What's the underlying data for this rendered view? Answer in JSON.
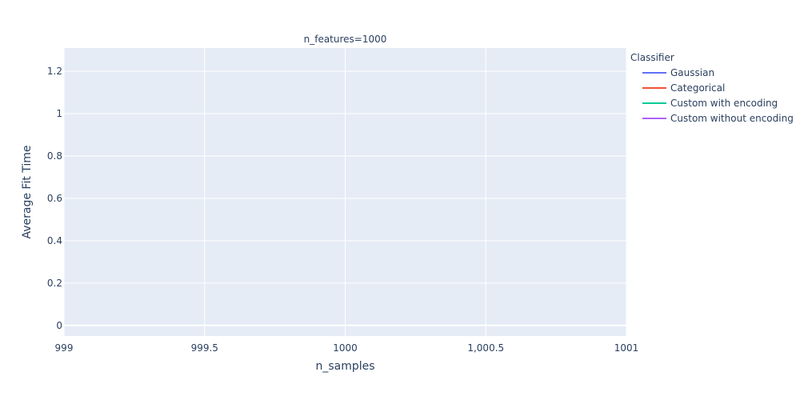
{
  "chart_data": {
    "type": "line",
    "title": "",
    "subplot_title": "n_features=1000",
    "xlabel": "n_samples",
    "ylabel": "Average Fit Time",
    "xlim": [
      999,
      1001
    ],
    "ylim": [
      -0.05,
      1.31
    ],
    "x_ticks": [
      999,
      999.5,
      1000,
      1000.5,
      1001
    ],
    "x_tick_labels": [
      "999",
      "999.5",
      "1000",
      "1,000.5",
      "1001"
    ],
    "y_ticks": [
      0,
      0.2,
      0.4,
      0.6,
      0.8,
      1,
      1.2
    ],
    "y_tick_labels": [
      "0",
      "0.2",
      "0.4",
      "0.6",
      "0.8",
      "1",
      "1.2"
    ],
    "grid": true,
    "legend_title": "Classifier",
    "legend_position": "right",
    "series": [
      {
        "name": "Gaussian",
        "color": "#636efa",
        "x": [],
        "y": []
      },
      {
        "name": "Categorical",
        "color": "#EF553B",
        "x": [],
        "y": []
      },
      {
        "name": "Custom with encoding",
        "color": "#00cc96",
        "x": [],
        "y": []
      },
      {
        "name": "Custom without encoding",
        "color": "#ab63fa",
        "x": [],
        "y": []
      }
    ],
    "plot_background": "#e5ecf6",
    "grid_color": "#ffffff"
  }
}
